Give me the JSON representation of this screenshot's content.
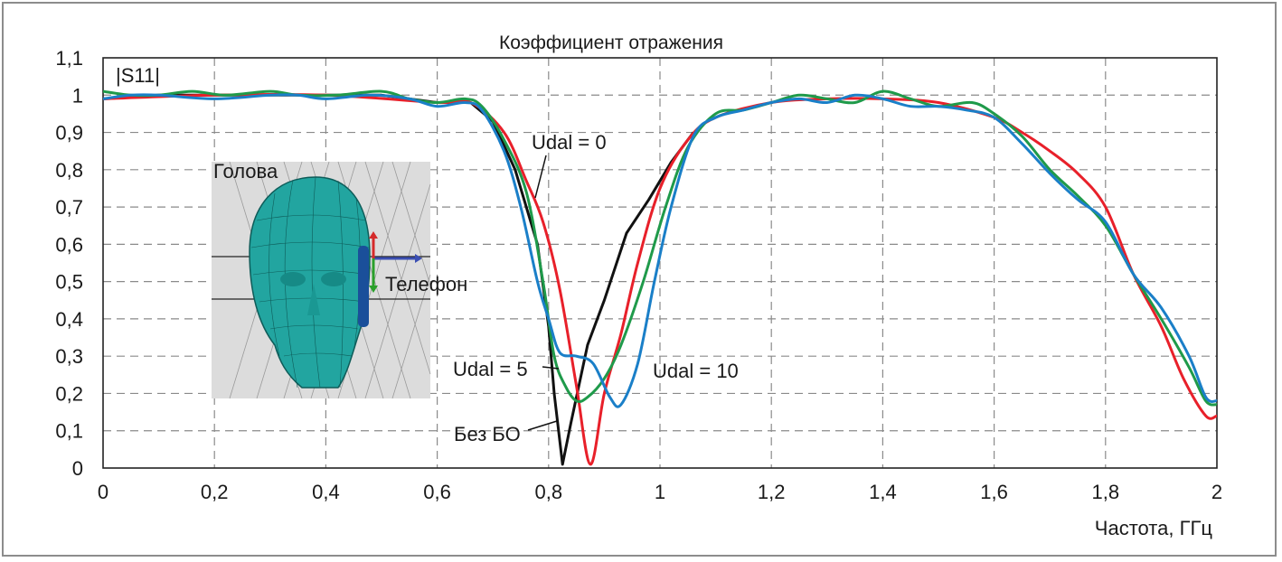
{
  "chart_data": {
    "type": "line",
    "title": "Коэффициент отражения",
    "ylabel": "|S11|",
    "xlabel": "Частота, ГГц",
    "xlim": [
      0,
      2
    ],
    "ylim": [
      0,
      1.1
    ],
    "grid": true,
    "x_ticks": [
      "0",
      "0,2",
      "0,4",
      "0,6",
      "0,8",
      "1",
      "1,2",
      "1,4",
      "1,6",
      "1,8",
      "2"
    ],
    "y_ticks": [
      "0",
      "0,1",
      "0,2",
      "0,3",
      "0,4",
      "0,5",
      "0,6",
      "0,7",
      "0,8",
      "0,9",
      "1",
      "1,1"
    ],
    "colors": {
      "black": "#111111",
      "red": "#e8202a",
      "green": "#1f9a4a",
      "blue": "#1a7fc8",
      "grid": "#8a8a8a"
    },
    "series": [
      {
        "name": "Без БО",
        "color": "#111111",
        "points": [
          [
            0,
            0.99
          ],
          [
            0.1,
            1.0
          ],
          [
            0.2,
            1.0
          ],
          [
            0.3,
            1.0
          ],
          [
            0.4,
            1.0
          ],
          [
            0.5,
            1.0
          ],
          [
            0.6,
            0.98
          ],
          [
            0.66,
            0.98
          ],
          [
            0.7,
            0.93
          ],
          [
            0.74,
            0.8
          ],
          [
            0.78,
            0.6
          ],
          [
            0.8,
            0.38
          ],
          [
            0.81,
            0.2
          ],
          [
            0.825,
            0.01
          ],
          [
            0.84,
            0.12
          ],
          [
            0.87,
            0.33
          ],
          [
            0.9,
            0.45
          ],
          [
            0.94,
            0.63
          ],
          [
            0.98,
            0.72
          ],
          [
            1.02,
            0.82
          ],
          [
            1.06,
            0.9
          ]
        ]
      },
      {
        "name": "Udal = 0",
        "color": "#e8202a",
        "points": [
          [
            0,
            0.99
          ],
          [
            0.2,
            1.0
          ],
          [
            0.4,
            1.0
          ],
          [
            0.6,
            0.98
          ],
          [
            0.66,
            0.98
          ],
          [
            0.72,
            0.9
          ],
          [
            0.76,
            0.77
          ],
          [
            0.79,
            0.66
          ],
          [
            0.82,
            0.48
          ],
          [
            0.85,
            0.22
          ],
          [
            0.875,
            0.01
          ],
          [
            0.9,
            0.2
          ],
          [
            0.93,
            0.36
          ],
          [
            0.96,
            0.55
          ],
          [
            1.0,
            0.75
          ],
          [
            1.05,
            0.88
          ],
          [
            1.1,
            0.94
          ],
          [
            1.2,
            0.98
          ],
          [
            1.3,
            0.99
          ],
          [
            1.4,
            0.99
          ],
          [
            1.5,
            0.98
          ],
          [
            1.6,
            0.94
          ],
          [
            1.65,
            0.9
          ],
          [
            1.7,
            0.85
          ],
          [
            1.75,
            0.79
          ],
          [
            1.8,
            0.7
          ],
          [
            1.85,
            0.52
          ],
          [
            1.9,
            0.38
          ],
          [
            1.94,
            0.24
          ],
          [
            1.98,
            0.14
          ],
          [
            2.0,
            0.14
          ]
        ]
      },
      {
        "name": "Udal = 5",
        "color": "#1f9a4a",
        "points": [
          [
            0,
            1.01
          ],
          [
            0.05,
            1.0
          ],
          [
            0.1,
            1.0
          ],
          [
            0.16,
            1.01
          ],
          [
            0.22,
            1.0
          ],
          [
            0.3,
            1.01
          ],
          [
            0.35,
            1.0
          ],
          [
            0.42,
            1.0
          ],
          [
            0.5,
            1.01
          ],
          [
            0.55,
            0.99
          ],
          [
            0.6,
            0.98
          ],
          [
            0.65,
            0.99
          ],
          [
            0.68,
            0.97
          ],
          [
            0.72,
            0.88
          ],
          [
            0.76,
            0.74
          ],
          [
            0.79,
            0.5
          ],
          [
            0.81,
            0.3
          ],
          [
            0.83,
            0.22
          ],
          [
            0.85,
            0.18
          ],
          [
            0.87,
            0.19
          ],
          [
            0.9,
            0.24
          ],
          [
            0.93,
            0.33
          ],
          [
            0.97,
            0.5
          ],
          [
            1.01,
            0.7
          ],
          [
            1.05,
            0.86
          ],
          [
            1.1,
            0.95
          ],
          [
            1.15,
            0.96
          ],
          [
            1.2,
            0.98
          ],
          [
            1.25,
            1.0
          ],
          [
            1.3,
            0.99
          ],
          [
            1.35,
            0.98
          ],
          [
            1.4,
            1.01
          ],
          [
            1.45,
            0.99
          ],
          [
            1.5,
            0.97
          ],
          [
            1.56,
            0.98
          ],
          [
            1.6,
            0.95
          ],
          [
            1.65,
            0.89
          ],
          [
            1.7,
            0.8
          ],
          [
            1.75,
            0.73
          ],
          [
            1.8,
            0.65
          ],
          [
            1.85,
            0.52
          ],
          [
            1.9,
            0.4
          ],
          [
            1.95,
            0.27
          ],
          [
            1.98,
            0.18
          ],
          [
            2.0,
            0.17
          ]
        ]
      },
      {
        "name": "Udal = 10",
        "color": "#1a7fc8",
        "points": [
          [
            0,
            0.99
          ],
          [
            0.05,
            1.0
          ],
          [
            0.1,
            1.0
          ],
          [
            0.2,
            0.99
          ],
          [
            0.3,
            1.0
          ],
          [
            0.35,
            1.0
          ],
          [
            0.4,
            0.99
          ],
          [
            0.48,
            1.0
          ],
          [
            0.55,
            0.99
          ],
          [
            0.6,
            0.97
          ],
          [
            0.65,
            0.98
          ],
          [
            0.68,
            0.96
          ],
          [
            0.72,
            0.85
          ],
          [
            0.75,
            0.7
          ],
          [
            0.78,
            0.5
          ],
          [
            0.8,
            0.4
          ],
          [
            0.82,
            0.31
          ],
          [
            0.85,
            0.3
          ],
          [
            0.88,
            0.28
          ],
          [
            0.91,
            0.19
          ],
          [
            0.93,
            0.17
          ],
          [
            0.96,
            0.28
          ],
          [
            0.99,
            0.5
          ],
          [
            1.02,
            0.7
          ],
          [
            1.06,
            0.89
          ],
          [
            1.1,
            0.94
          ],
          [
            1.15,
            0.96
          ],
          [
            1.2,
            0.98
          ],
          [
            1.25,
            0.99
          ],
          [
            1.3,
            0.98
          ],
          [
            1.35,
            1.0
          ],
          [
            1.4,
            0.99
          ],
          [
            1.45,
            0.97
          ],
          [
            1.5,
            0.97
          ],
          [
            1.55,
            0.96
          ],
          [
            1.6,
            0.94
          ],
          [
            1.65,
            0.87
          ],
          [
            1.7,
            0.79
          ],
          [
            1.75,
            0.72
          ],
          [
            1.8,
            0.66
          ],
          [
            1.85,
            0.52
          ],
          [
            1.9,
            0.43
          ],
          [
            1.95,
            0.3
          ],
          [
            1.98,
            0.19
          ],
          [
            2.0,
            0.18
          ]
        ]
      }
    ],
    "annotations": {
      "udal0": "Udal = 0",
      "udal5": "Udal = 5",
      "udal10": "Udal = 10",
      "bez_bo": "Без БО"
    },
    "inset": {
      "head_label": "Голова",
      "phone_label": "Телефон",
      "background": "#dcdcdc",
      "head_color": "#22a5a0"
    }
  }
}
